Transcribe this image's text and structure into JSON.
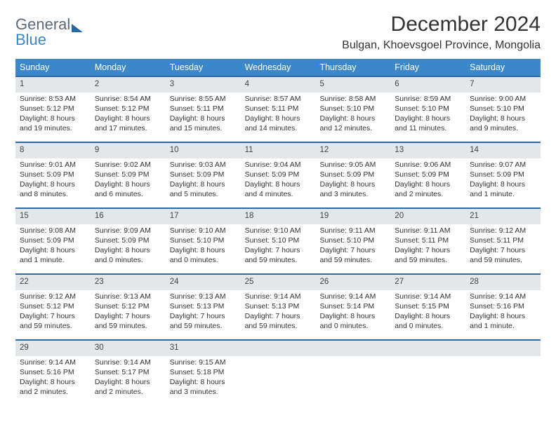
{
  "brand": {
    "word1": "General",
    "word2": "Blue"
  },
  "title": "December 2024",
  "location": "Bulgan, Khoevsgoel Province, Mongolia",
  "colors": {
    "header_bg": "#3b87c8",
    "week_border": "#2f6aa3",
    "num_bg": "#e3e7ea",
    "text": "#333333",
    "logo_gray": "#5a6a78",
    "logo_blue": "#3b87c8"
  },
  "fonts": {
    "title_pt": 30,
    "location_pt": 16,
    "dayhead_pt": 12.5,
    "cell_pt": 10.5
  },
  "day_names": [
    "Sunday",
    "Monday",
    "Tuesday",
    "Wednesday",
    "Thursday",
    "Friday",
    "Saturday"
  ],
  "weeks": [
    [
      {
        "n": "1",
        "sr": "Sunrise: 8:53 AM",
        "ss": "Sunset: 5:12 PM",
        "d1": "Daylight: 8 hours",
        "d2": "and 19 minutes."
      },
      {
        "n": "2",
        "sr": "Sunrise: 8:54 AM",
        "ss": "Sunset: 5:12 PM",
        "d1": "Daylight: 8 hours",
        "d2": "and 17 minutes."
      },
      {
        "n": "3",
        "sr": "Sunrise: 8:55 AM",
        "ss": "Sunset: 5:11 PM",
        "d1": "Daylight: 8 hours",
        "d2": "and 15 minutes."
      },
      {
        "n": "4",
        "sr": "Sunrise: 8:57 AM",
        "ss": "Sunset: 5:11 PM",
        "d1": "Daylight: 8 hours",
        "d2": "and 14 minutes."
      },
      {
        "n": "5",
        "sr": "Sunrise: 8:58 AM",
        "ss": "Sunset: 5:10 PM",
        "d1": "Daylight: 8 hours",
        "d2": "and 12 minutes."
      },
      {
        "n": "6",
        "sr": "Sunrise: 8:59 AM",
        "ss": "Sunset: 5:10 PM",
        "d1": "Daylight: 8 hours",
        "d2": "and 11 minutes."
      },
      {
        "n": "7",
        "sr": "Sunrise: 9:00 AM",
        "ss": "Sunset: 5:10 PM",
        "d1": "Daylight: 8 hours",
        "d2": "and 9 minutes."
      }
    ],
    [
      {
        "n": "8",
        "sr": "Sunrise: 9:01 AM",
        "ss": "Sunset: 5:09 PM",
        "d1": "Daylight: 8 hours",
        "d2": "and 8 minutes."
      },
      {
        "n": "9",
        "sr": "Sunrise: 9:02 AM",
        "ss": "Sunset: 5:09 PM",
        "d1": "Daylight: 8 hours",
        "d2": "and 6 minutes."
      },
      {
        "n": "10",
        "sr": "Sunrise: 9:03 AM",
        "ss": "Sunset: 5:09 PM",
        "d1": "Daylight: 8 hours",
        "d2": "and 5 minutes."
      },
      {
        "n": "11",
        "sr": "Sunrise: 9:04 AM",
        "ss": "Sunset: 5:09 PM",
        "d1": "Daylight: 8 hours",
        "d2": "and 4 minutes."
      },
      {
        "n": "12",
        "sr": "Sunrise: 9:05 AM",
        "ss": "Sunset: 5:09 PM",
        "d1": "Daylight: 8 hours",
        "d2": "and 3 minutes."
      },
      {
        "n": "13",
        "sr": "Sunrise: 9:06 AM",
        "ss": "Sunset: 5:09 PM",
        "d1": "Daylight: 8 hours",
        "d2": "and 2 minutes."
      },
      {
        "n": "14",
        "sr": "Sunrise: 9:07 AM",
        "ss": "Sunset: 5:09 PM",
        "d1": "Daylight: 8 hours",
        "d2": "and 1 minute."
      }
    ],
    [
      {
        "n": "15",
        "sr": "Sunrise: 9:08 AM",
        "ss": "Sunset: 5:09 PM",
        "d1": "Daylight: 8 hours",
        "d2": "and 1 minute."
      },
      {
        "n": "16",
        "sr": "Sunrise: 9:09 AM",
        "ss": "Sunset: 5:09 PM",
        "d1": "Daylight: 8 hours",
        "d2": "and 0 minutes."
      },
      {
        "n": "17",
        "sr": "Sunrise: 9:10 AM",
        "ss": "Sunset: 5:10 PM",
        "d1": "Daylight: 8 hours",
        "d2": "and 0 minutes."
      },
      {
        "n": "18",
        "sr": "Sunrise: 9:10 AM",
        "ss": "Sunset: 5:10 PM",
        "d1": "Daylight: 7 hours",
        "d2": "and 59 minutes."
      },
      {
        "n": "19",
        "sr": "Sunrise: 9:11 AM",
        "ss": "Sunset: 5:10 PM",
        "d1": "Daylight: 7 hours",
        "d2": "and 59 minutes."
      },
      {
        "n": "20",
        "sr": "Sunrise: 9:11 AM",
        "ss": "Sunset: 5:11 PM",
        "d1": "Daylight: 7 hours",
        "d2": "and 59 minutes."
      },
      {
        "n": "21",
        "sr": "Sunrise: 9:12 AM",
        "ss": "Sunset: 5:11 PM",
        "d1": "Daylight: 7 hours",
        "d2": "and 59 minutes."
      }
    ],
    [
      {
        "n": "22",
        "sr": "Sunrise: 9:12 AM",
        "ss": "Sunset: 5:12 PM",
        "d1": "Daylight: 7 hours",
        "d2": "and 59 minutes."
      },
      {
        "n": "23",
        "sr": "Sunrise: 9:13 AM",
        "ss": "Sunset: 5:12 PM",
        "d1": "Daylight: 7 hours",
        "d2": "and 59 minutes."
      },
      {
        "n": "24",
        "sr": "Sunrise: 9:13 AM",
        "ss": "Sunset: 5:13 PM",
        "d1": "Daylight: 7 hours",
        "d2": "and 59 minutes."
      },
      {
        "n": "25",
        "sr": "Sunrise: 9:14 AM",
        "ss": "Sunset: 5:13 PM",
        "d1": "Daylight: 7 hours",
        "d2": "and 59 minutes."
      },
      {
        "n": "26",
        "sr": "Sunrise: 9:14 AM",
        "ss": "Sunset: 5:14 PM",
        "d1": "Daylight: 8 hours",
        "d2": "and 0 minutes."
      },
      {
        "n": "27",
        "sr": "Sunrise: 9:14 AM",
        "ss": "Sunset: 5:15 PM",
        "d1": "Daylight: 8 hours",
        "d2": "and 0 minutes."
      },
      {
        "n": "28",
        "sr": "Sunrise: 9:14 AM",
        "ss": "Sunset: 5:16 PM",
        "d1": "Daylight: 8 hours",
        "d2": "and 1 minute."
      }
    ],
    [
      {
        "n": "29",
        "sr": "Sunrise: 9:14 AM",
        "ss": "Sunset: 5:16 PM",
        "d1": "Daylight: 8 hours",
        "d2": "and 2 minutes."
      },
      {
        "n": "30",
        "sr": "Sunrise: 9:14 AM",
        "ss": "Sunset: 5:17 PM",
        "d1": "Daylight: 8 hours",
        "d2": "and 2 minutes."
      },
      {
        "n": "31",
        "sr": "Sunrise: 9:15 AM",
        "ss": "Sunset: 5:18 PM",
        "d1": "Daylight: 8 hours",
        "d2": "and 3 minutes."
      },
      {
        "empty": true
      },
      {
        "empty": true
      },
      {
        "empty": true
      },
      {
        "empty": true
      }
    ]
  ]
}
